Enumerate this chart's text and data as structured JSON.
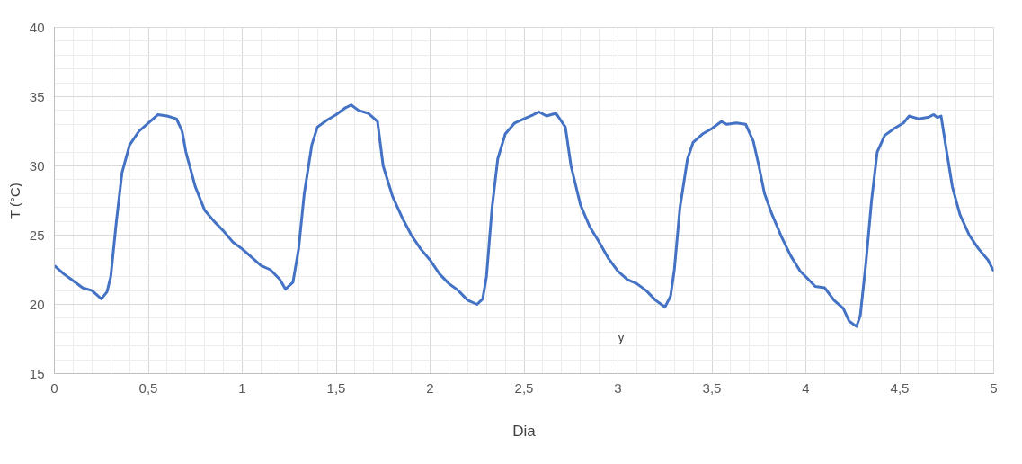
{
  "chart_data": {
    "type": "line",
    "xlabel": "Dia",
    "ylabel": "T (°C)",
    "annotations": [
      "y"
    ],
    "xlim": [
      0,
      5
    ],
    "ylim": [
      15,
      40
    ],
    "xticks": [
      0,
      {
        "value": 0.5,
        "label": "0,5"
      },
      1,
      {
        "value": 1.5,
        "label": "1,5"
      },
      2,
      {
        "value": 2.5,
        "label": "2,5"
      },
      3,
      {
        "value": 3.5,
        "label": "3,5"
      },
      4,
      {
        "value": 4.5,
        "label": "4,5"
      },
      5
    ],
    "yticks": [
      15,
      20,
      25,
      30,
      35,
      40
    ],
    "grid": true,
    "marker": "none",
    "line_style": "solid",
    "series": [
      {
        "color": "#4472c4",
        "x": [
          0,
          0.05,
          0.1,
          0.15,
          0.2,
          0.25,
          0.28,
          0.3,
          0.33,
          0.36,
          0.4,
          0.45,
          0.5,
          0.55,
          0.6,
          0.65,
          0.68,
          0.7,
          0.75,
          0.8,
          0.85,
          0.9,
          0.95,
          1.0,
          1.05,
          1.1,
          1.15,
          1.2,
          1.23,
          1.27,
          1.3,
          1.33,
          1.37,
          1.4,
          1.45,
          1.5,
          1.55,
          1.58,
          1.62,
          1.67,
          1.72,
          1.75,
          1.8,
          1.85,
          1.9,
          1.95,
          2.0,
          2.05,
          2.1,
          2.15,
          2.2,
          2.25,
          2.28,
          2.3,
          2.33,
          2.36,
          2.4,
          2.45,
          2.5,
          2.55,
          2.58,
          2.62,
          2.67,
          2.72,
          2.75,
          2.8,
          2.85,
          2.9,
          2.95,
          3.0,
          3.05,
          3.1,
          3.15,
          3.2,
          3.25,
          3.28,
          3.3,
          3.33,
          3.37,
          3.4,
          3.45,
          3.5,
          3.55,
          3.58,
          3.63,
          3.68,
          3.72,
          3.75,
          3.78,
          3.82,
          3.87,
          3.92,
          3.97,
          4.0,
          4.05,
          4.1,
          4.15,
          4.2,
          4.23,
          4.27,
          4.29,
          4.32,
          4.35,
          4.38,
          4.42,
          4.47,
          4.52,
          4.55,
          4.6,
          4.65,
          4.68,
          4.7,
          4.72,
          4.75,
          4.78,
          4.82,
          4.87,
          4.92,
          4.97,
          5.0
        ],
        "values": [
          22.8,
          22.2,
          21.7,
          21.2,
          21.0,
          20.4,
          20.9,
          22,
          26,
          29.5,
          31.5,
          32.5,
          33.1,
          33.7,
          33.6,
          33.4,
          32.5,
          31,
          28.5,
          26.8,
          26,
          25.3,
          24.5,
          24.0,
          23.4,
          22.8,
          22.5,
          21.8,
          21.1,
          21.6,
          24,
          28,
          31.5,
          32.8,
          33.3,
          33.7,
          34.2,
          34.4,
          34.0,
          33.8,
          33.2,
          30,
          27.8,
          26.3,
          25,
          24,
          23.2,
          22.2,
          21.5,
          21.0,
          20.3,
          20.0,
          20.4,
          22,
          27,
          30.5,
          32.3,
          33.1,
          33.4,
          33.7,
          33.9,
          33.6,
          33.8,
          32.8,
          30,
          27.2,
          25.6,
          24.5,
          23.3,
          22.4,
          21.8,
          21.5,
          21,
          20.3,
          19.8,
          20.6,
          22.5,
          27,
          30.5,
          31.7,
          32.3,
          32.7,
          33.2,
          33.0,
          33.1,
          33,
          31.8,
          30,
          28,
          26.5,
          24.9,
          23.5,
          22.4,
          22,
          21.3,
          21.2,
          20.3,
          19.7,
          18.8,
          18.4,
          19.2,
          23,
          27.5,
          31,
          32.2,
          32.7,
          33.1,
          33.6,
          33.4,
          33.5,
          33.7,
          33.5,
          33.6,
          31,
          28.5,
          26.5,
          25,
          24,
          23.2,
          22.4
        ]
      }
    ]
  }
}
